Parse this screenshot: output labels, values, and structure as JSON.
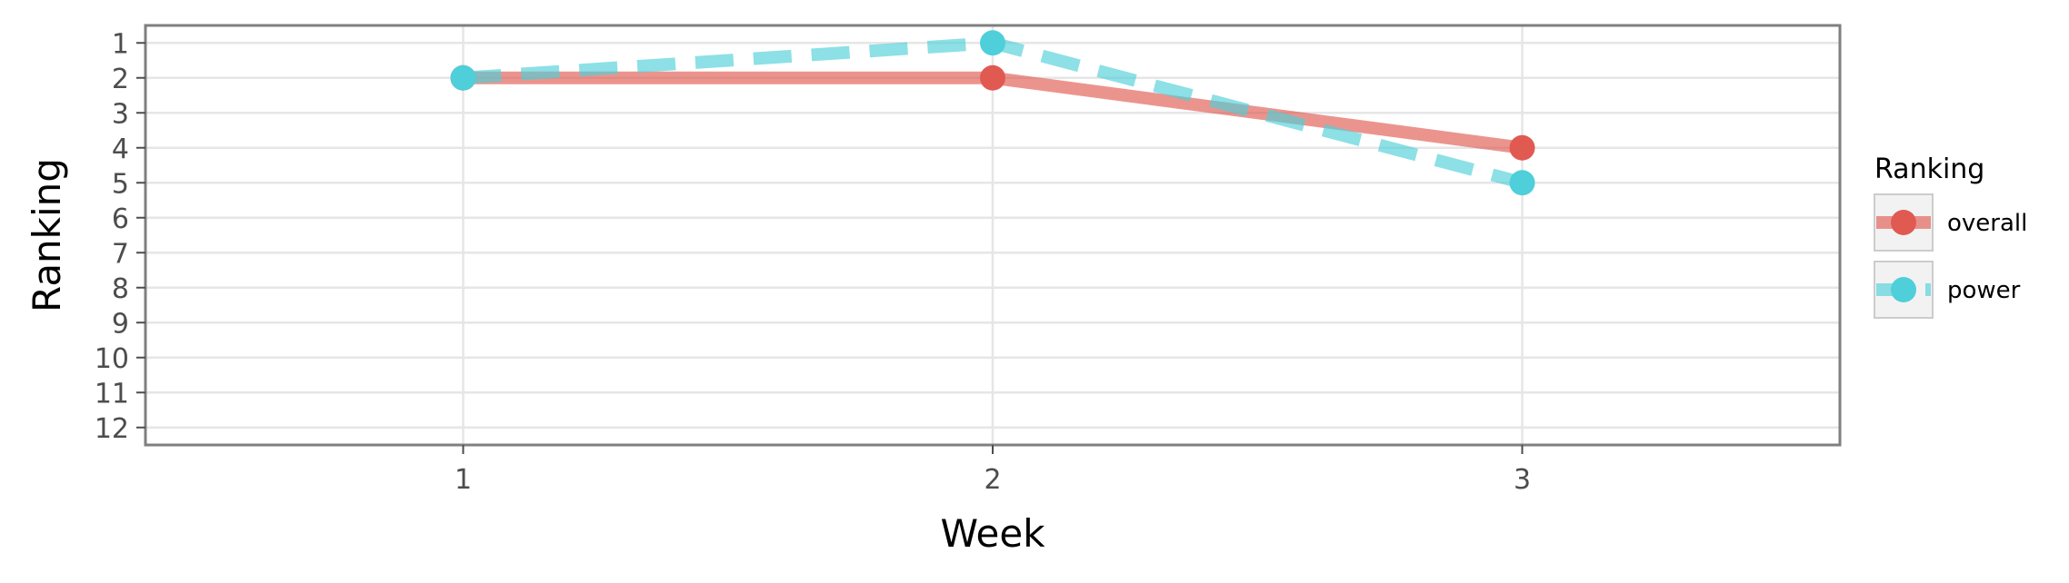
{
  "chart_data": {
    "type": "line",
    "xlabel": "Week",
    "ylabel": "Ranking",
    "x": [
      1,
      2,
      3
    ],
    "x_ticks": [
      "1",
      "2",
      "3"
    ],
    "xlim": [
      0.4,
      3.6
    ],
    "y_ticks": [
      "1",
      "2",
      "3",
      "4",
      "5",
      "6",
      "7",
      "8",
      "9",
      "10",
      "11",
      "12"
    ],
    "ylim": [
      12.5,
      0.5
    ],
    "y_reversed": true,
    "grid": true,
    "legend": {
      "title": "Ranking",
      "position": "right"
    },
    "series": [
      {
        "name": "overall",
        "values": [
          2,
          2,
          4
        ],
        "color": "#e05a52",
        "line_style": "solid"
      },
      {
        "name": "power",
        "values": [
          2,
          1,
          5
        ],
        "color": "#4ecfd9",
        "line_style": "dashed"
      }
    ]
  }
}
